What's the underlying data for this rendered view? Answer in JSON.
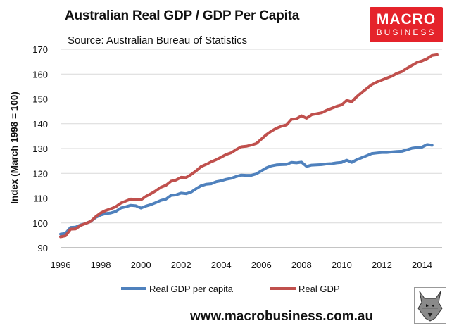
{
  "header": {
    "title": "Australian Real GDP / GDP Per Capita",
    "subtitle": "Source: Australian Bureau of Statistics"
  },
  "logo": {
    "line1": "MACRO",
    "line2": "BUSINESS",
    "color": "#e5232b"
  },
  "footer": {
    "url": "www.macrobusiness.com.au",
    "mascot_icon": "wolf-icon"
  },
  "chart_data": {
    "type": "line",
    "title": "Australian Real GDP / GDP Per Capita",
    "xlabel": "",
    "ylabel": "Index (March 1998 = 100)",
    "xlim": [
      1996,
      2015
    ],
    "ylim": [
      90,
      170
    ],
    "xticks": [
      1996,
      1998,
      2000,
      2002,
      2004,
      2006,
      2008,
      2010,
      2012,
      2014
    ],
    "yticks": [
      90,
      100,
      110,
      120,
      130,
      140,
      150,
      160,
      170
    ],
    "grid": "horizontal",
    "legend_position": "bottom",
    "series": [
      {
        "name": "Real GDP per capita",
        "color": "#4f81bd",
        "x": [
          1996.0,
          1996.25,
          1996.5,
          1996.75,
          1997.0,
          1997.25,
          1997.5,
          1997.75,
          1998.0,
          1998.25,
          1998.5,
          1998.75,
          1999.0,
          1999.25,
          1999.5,
          1999.75,
          2000.0,
          2000.25,
          2000.5,
          2000.75,
          2001.0,
          2001.25,
          2001.5,
          2001.75,
          2002.0,
          2002.25,
          2002.5,
          2002.75,
          2003.0,
          2003.25,
          2003.5,
          2003.75,
          2004.0,
          2004.25,
          2004.5,
          2004.75,
          2005.0,
          2005.25,
          2005.5,
          2005.75,
          2006.0,
          2006.25,
          2006.5,
          2006.75,
          2007.0,
          2007.25,
          2007.5,
          2007.75,
          2008.0,
          2008.25,
          2008.5,
          2008.75,
          2009.0,
          2009.25,
          2009.5,
          2009.75,
          2010.0,
          2010.25,
          2010.5,
          2010.75,
          2011.0,
          2011.25,
          2011.5,
          2011.75,
          2012.0,
          2012.25,
          2012.5,
          2012.75,
          2013.0,
          2013.25,
          2013.5,
          2013.75,
          2014.0,
          2014.25,
          2014.5
        ],
        "values": [
          95.5,
          95.8,
          98.2,
          98.3,
          99.2,
          99.8,
          100.6,
          102.2,
          103.2,
          103.8,
          104.0,
          104.6,
          106.0,
          106.5,
          107.1,
          106.9,
          106.0,
          106.8,
          107.4,
          108.2,
          109.1,
          109.6,
          111.1,
          111.3,
          112.0,
          111.8,
          112.4,
          113.8,
          115.0,
          115.6,
          115.8,
          116.6,
          117.0,
          117.6,
          118.0,
          118.7,
          119.3,
          119.2,
          119.2,
          119.8,
          121.0,
          122.2,
          123.0,
          123.4,
          123.5,
          123.6,
          124.4,
          124.2,
          124.5,
          122.8,
          123.3,
          123.4,
          123.5,
          123.8,
          123.9,
          124.2,
          124.4,
          125.3,
          124.4,
          125.5,
          126.3,
          127.1,
          128.0,
          128.2,
          128.4,
          128.4,
          128.6,
          128.8,
          128.9,
          129.5,
          130.1,
          130.4,
          130.6,
          131.6,
          131.3
        ]
      },
      {
        "name": "Real GDP",
        "color": "#c0504d",
        "x": [
          1996.0,
          1996.25,
          1996.5,
          1996.75,
          1997.0,
          1997.25,
          1997.5,
          1997.75,
          1998.0,
          1998.25,
          1998.5,
          1998.75,
          1999.0,
          1999.25,
          1999.5,
          1999.75,
          2000.0,
          2000.25,
          2000.5,
          2000.75,
          2001.0,
          2001.25,
          2001.5,
          2001.75,
          2002.0,
          2002.25,
          2002.5,
          2002.75,
          2003.0,
          2003.25,
          2003.5,
          2003.75,
          2004.0,
          2004.25,
          2004.5,
          2004.75,
          2005.0,
          2005.25,
          2005.5,
          2005.75,
          2006.0,
          2006.25,
          2006.5,
          2006.75,
          2007.0,
          2007.25,
          2007.5,
          2007.75,
          2008.0,
          2008.25,
          2008.5,
          2008.75,
          2009.0,
          2009.25,
          2009.5,
          2009.75,
          2010.0,
          2010.25,
          2010.5,
          2010.75,
          2011.0,
          2011.25,
          2011.5,
          2011.75,
          2012.0,
          2012.25,
          2012.5,
          2012.75,
          2013.0,
          2013.25,
          2013.5,
          2013.75,
          2014.0,
          2014.25,
          2014.5,
          2014.75
        ],
        "values": [
          94.4,
          94.8,
          97.5,
          97.6,
          99.0,
          99.8,
          100.6,
          102.5,
          104.0,
          105.0,
          105.7,
          106.5,
          108.0,
          108.8,
          109.6,
          109.5,
          109.3,
          110.7,
          111.8,
          113.0,
          114.4,
          115.2,
          116.8,
          117.3,
          118.4,
          118.3,
          119.5,
          121.0,
          122.7,
          123.6,
          124.6,
          125.5,
          126.5,
          127.6,
          128.3,
          129.6,
          130.7,
          130.9,
          131.4,
          132.0,
          133.8,
          135.6,
          137.0,
          138.2,
          139.0,
          139.5,
          141.8,
          142.0,
          143.2,
          142.2,
          143.6,
          144.0,
          144.4,
          145.4,
          146.2,
          147.0,
          147.6,
          149.4,
          148.8,
          150.9,
          152.6,
          154.2,
          155.8,
          156.8,
          157.6,
          158.4,
          159.2,
          160.3,
          161.0,
          162.3,
          163.5,
          164.7,
          165.3,
          166.2,
          167.5,
          167.8
        ]
      }
    ]
  }
}
